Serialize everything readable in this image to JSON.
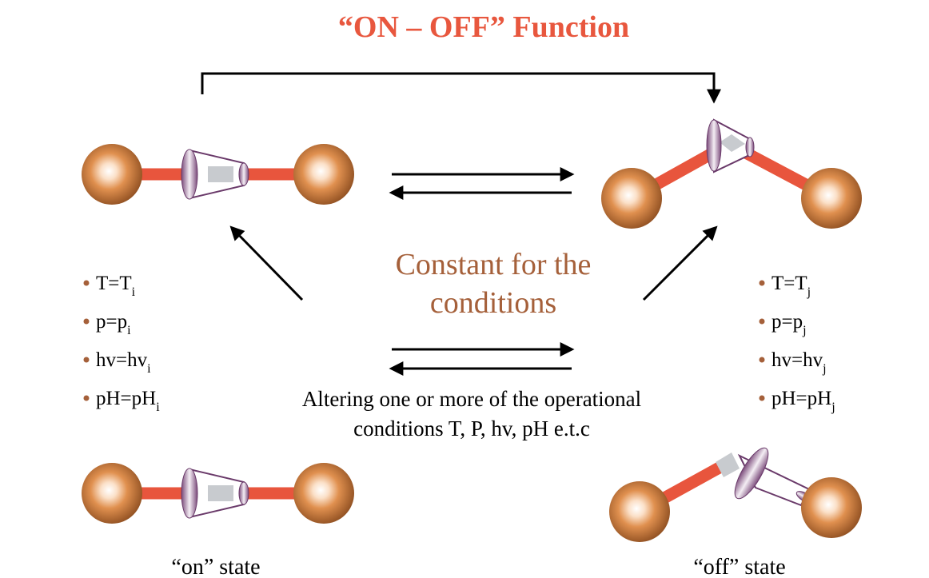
{
  "title": "“ON – OFF” Function",
  "center_text": [
    "Constant for the",
    "conditions"
  ],
  "left_conditions": [
    {
      "text": "T=T",
      "sub": "i"
    },
    {
      "text": "p=p",
      "sub": "i"
    },
    {
      "text": "hv=hv",
      "sub": "i"
    },
    {
      "text": "pH=pH",
      "sub": "i"
    }
  ],
  "right_conditions": [
    {
      "text": "T=T",
      "sub": "j"
    },
    {
      "text": "p=p",
      "sub": "j"
    },
    {
      "text": "hv=hv",
      "sub": "j"
    },
    {
      "text": "pH=pH",
      "sub": "j"
    }
  ],
  "altering_text": [
    "Altering one or more of the operational",
    "conditions T, P, hv, pH e.t.c"
  ],
  "on_label": "“on” state",
  "off_label": "“off” state"
}
